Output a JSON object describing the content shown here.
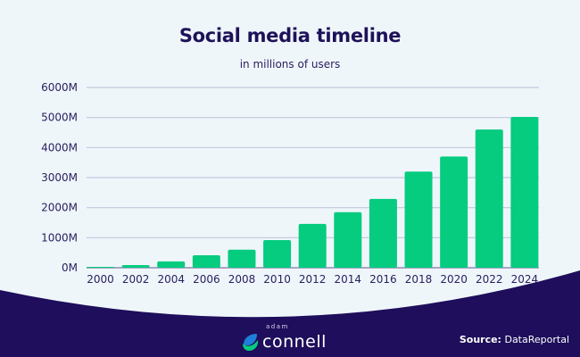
{
  "title": "Social media timeline",
  "subtitle": "in millions of users",
  "colors": {
    "bar": "#05cc7f",
    "background": "#eff6fa",
    "footer": "#1e0e5b",
    "text": "#1e1259",
    "gridline": "#c3c6dc"
  },
  "chart_data": {
    "type": "bar",
    "title": "Social media timeline",
    "subtitle": "in millions of users",
    "xlabel": "",
    "ylabel": "",
    "categories": [
      "2000",
      "2002",
      "2004",
      "2006",
      "2008",
      "2010",
      "2012",
      "2014",
      "2016",
      "2018",
      "2020",
      "2022",
      "2024"
    ],
    "values": [
      15,
      90,
      210,
      415,
      600,
      920,
      1460,
      1850,
      2290,
      3200,
      3700,
      4600,
      5020
    ],
    "unit": "M",
    "ylim": [
      0,
      6000
    ],
    "yticks": [
      0,
      1000,
      2000,
      3000,
      4000,
      5000,
      6000
    ],
    "ytick_labels": [
      "0M",
      "1000M",
      "2000M",
      "3000M",
      "4000M",
      "5000M",
      "6000M"
    ],
    "grid": true,
    "legend": "none"
  },
  "footer": {
    "logo_top": "adam",
    "logo_main": "connell",
    "source_label": "Source:",
    "source_value": "DataReportal"
  }
}
